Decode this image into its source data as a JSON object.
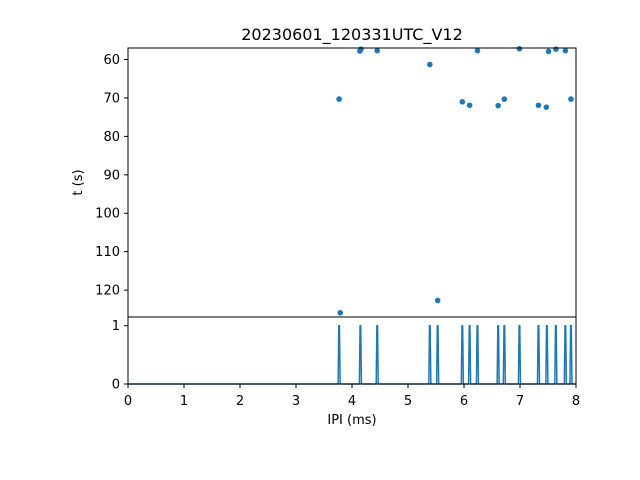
{
  "chart_data": [
    {
      "type": "scatter",
      "title": "20230601_120331UTC_V12",
      "xlabel": "",
      "ylabel": "t (s)",
      "xlim": [
        0,
        8
      ],
      "ylim": [
        57,
        127
      ],
      "y_inverted": true,
      "yticks": [
        "60",
        "70",
        "80",
        "90",
        "100",
        "110",
        "120"
      ],
      "grid": false,
      "color": "#1f77b4",
      "points": [
        {
          "x": 3.77,
          "y": 70.3
        },
        {
          "x": 3.79,
          "y": 125.9
        },
        {
          "x": 4.14,
          "y": 57.8
        },
        {
          "x": 4.16,
          "y": 57.3
        },
        {
          "x": 4.45,
          "y": 57.7
        },
        {
          "x": 5.39,
          "y": 61.3
        },
        {
          "x": 5.53,
          "y": 122.7
        },
        {
          "x": 5.97,
          "y": 71.0
        },
        {
          "x": 6.1,
          "y": 71.9
        },
        {
          "x": 6.24,
          "y": 57.7
        },
        {
          "x": 6.61,
          "y": 72.0
        },
        {
          "x": 6.72,
          "y": 70.3
        },
        {
          "x": 6.99,
          "y": 57.2
        },
        {
          "x": 7.33,
          "y": 71.9
        },
        {
          "x": 7.47,
          "y": 72.4
        },
        {
          "x": 7.51,
          "y": 57.9
        },
        {
          "x": 7.64,
          "y": 57.3
        },
        {
          "x": 7.81,
          "y": 57.7
        },
        {
          "x": 7.91,
          "y": 70.3
        }
      ]
    },
    {
      "type": "line",
      "title": "",
      "xlabel": "IPI (ms)",
      "ylabel": "",
      "xlim": [
        0,
        8
      ],
      "ylim": [
        0,
        1.15
      ],
      "xticks": [
        "0",
        "1",
        "2",
        "3",
        "4",
        "5",
        "6",
        "7",
        "8"
      ],
      "yticks": [
        "0",
        "1"
      ],
      "grid": false,
      "color": "#1f77b4",
      "spike_x": [
        3.77,
        4.15,
        4.45,
        5.39,
        5.53,
        5.97,
        6.1,
        6.24,
        6.61,
        6.72,
        6.99,
        7.33,
        7.48,
        7.64,
        7.81,
        7.91
      ],
      "spike_height": 1
    }
  ]
}
